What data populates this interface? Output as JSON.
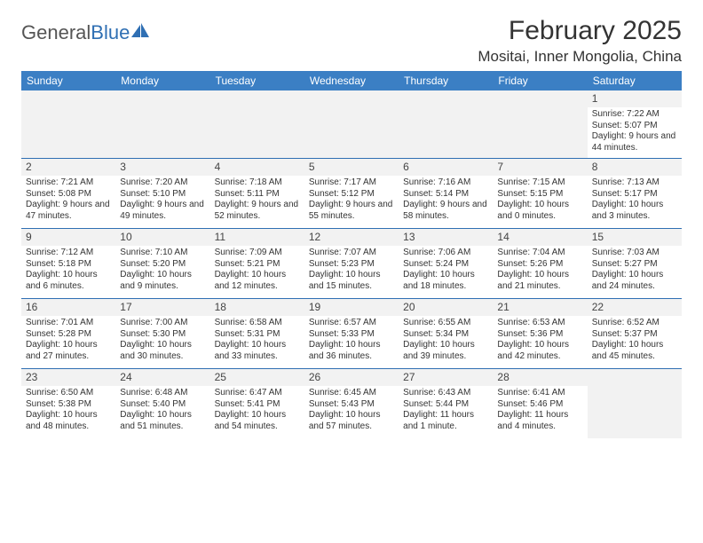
{
  "logo": {
    "text1": "General",
    "text2": "Blue"
  },
  "header": {
    "month_title": "February 2025",
    "location": "Mositai, Inner Mongolia, China"
  },
  "colors": {
    "header_bar": "#3b7fc4",
    "rule": "#2f6fb3",
    "shade": "#f2f2f2",
    "text": "#333333"
  },
  "day_names": [
    "Sunday",
    "Monday",
    "Tuesday",
    "Wednesday",
    "Thursday",
    "Friday",
    "Saturday"
  ],
  "weeks": [
    [
      null,
      null,
      null,
      null,
      null,
      null,
      {
        "n": "1",
        "sunrise": "Sunrise: 7:22 AM",
        "sunset": "Sunset: 5:07 PM",
        "day": "Daylight: 9 hours and 44 minutes."
      }
    ],
    [
      {
        "n": "2",
        "sunrise": "Sunrise: 7:21 AM",
        "sunset": "Sunset: 5:08 PM",
        "day": "Daylight: 9 hours and 47 minutes."
      },
      {
        "n": "3",
        "sunrise": "Sunrise: 7:20 AM",
        "sunset": "Sunset: 5:10 PM",
        "day": "Daylight: 9 hours and 49 minutes."
      },
      {
        "n": "4",
        "sunrise": "Sunrise: 7:18 AM",
        "sunset": "Sunset: 5:11 PM",
        "day": "Daylight: 9 hours and 52 minutes."
      },
      {
        "n": "5",
        "sunrise": "Sunrise: 7:17 AM",
        "sunset": "Sunset: 5:12 PM",
        "day": "Daylight: 9 hours and 55 minutes."
      },
      {
        "n": "6",
        "sunrise": "Sunrise: 7:16 AM",
        "sunset": "Sunset: 5:14 PM",
        "day": "Daylight: 9 hours and 58 minutes."
      },
      {
        "n": "7",
        "sunrise": "Sunrise: 7:15 AM",
        "sunset": "Sunset: 5:15 PM",
        "day": "Daylight: 10 hours and 0 minutes."
      },
      {
        "n": "8",
        "sunrise": "Sunrise: 7:13 AM",
        "sunset": "Sunset: 5:17 PM",
        "day": "Daylight: 10 hours and 3 minutes."
      }
    ],
    [
      {
        "n": "9",
        "sunrise": "Sunrise: 7:12 AM",
        "sunset": "Sunset: 5:18 PM",
        "day": "Daylight: 10 hours and 6 minutes."
      },
      {
        "n": "10",
        "sunrise": "Sunrise: 7:10 AM",
        "sunset": "Sunset: 5:20 PM",
        "day": "Daylight: 10 hours and 9 minutes."
      },
      {
        "n": "11",
        "sunrise": "Sunrise: 7:09 AM",
        "sunset": "Sunset: 5:21 PM",
        "day": "Daylight: 10 hours and 12 minutes."
      },
      {
        "n": "12",
        "sunrise": "Sunrise: 7:07 AM",
        "sunset": "Sunset: 5:23 PM",
        "day": "Daylight: 10 hours and 15 minutes."
      },
      {
        "n": "13",
        "sunrise": "Sunrise: 7:06 AM",
        "sunset": "Sunset: 5:24 PM",
        "day": "Daylight: 10 hours and 18 minutes."
      },
      {
        "n": "14",
        "sunrise": "Sunrise: 7:04 AM",
        "sunset": "Sunset: 5:26 PM",
        "day": "Daylight: 10 hours and 21 minutes."
      },
      {
        "n": "15",
        "sunrise": "Sunrise: 7:03 AM",
        "sunset": "Sunset: 5:27 PM",
        "day": "Daylight: 10 hours and 24 minutes."
      }
    ],
    [
      {
        "n": "16",
        "sunrise": "Sunrise: 7:01 AM",
        "sunset": "Sunset: 5:28 PM",
        "day": "Daylight: 10 hours and 27 minutes."
      },
      {
        "n": "17",
        "sunrise": "Sunrise: 7:00 AM",
        "sunset": "Sunset: 5:30 PM",
        "day": "Daylight: 10 hours and 30 minutes."
      },
      {
        "n": "18",
        "sunrise": "Sunrise: 6:58 AM",
        "sunset": "Sunset: 5:31 PM",
        "day": "Daylight: 10 hours and 33 minutes."
      },
      {
        "n": "19",
        "sunrise": "Sunrise: 6:57 AM",
        "sunset": "Sunset: 5:33 PM",
        "day": "Daylight: 10 hours and 36 minutes."
      },
      {
        "n": "20",
        "sunrise": "Sunrise: 6:55 AM",
        "sunset": "Sunset: 5:34 PM",
        "day": "Daylight: 10 hours and 39 minutes."
      },
      {
        "n": "21",
        "sunrise": "Sunrise: 6:53 AM",
        "sunset": "Sunset: 5:36 PM",
        "day": "Daylight: 10 hours and 42 minutes."
      },
      {
        "n": "22",
        "sunrise": "Sunrise: 6:52 AM",
        "sunset": "Sunset: 5:37 PM",
        "day": "Daylight: 10 hours and 45 minutes."
      }
    ],
    [
      {
        "n": "23",
        "sunrise": "Sunrise: 6:50 AM",
        "sunset": "Sunset: 5:38 PM",
        "day": "Daylight: 10 hours and 48 minutes."
      },
      {
        "n": "24",
        "sunrise": "Sunrise: 6:48 AM",
        "sunset": "Sunset: 5:40 PM",
        "day": "Daylight: 10 hours and 51 minutes."
      },
      {
        "n": "25",
        "sunrise": "Sunrise: 6:47 AM",
        "sunset": "Sunset: 5:41 PM",
        "day": "Daylight: 10 hours and 54 minutes."
      },
      {
        "n": "26",
        "sunrise": "Sunrise: 6:45 AM",
        "sunset": "Sunset: 5:43 PM",
        "day": "Daylight: 10 hours and 57 minutes."
      },
      {
        "n": "27",
        "sunrise": "Sunrise: 6:43 AM",
        "sunset": "Sunset: 5:44 PM",
        "day": "Daylight: 11 hours and 1 minute."
      },
      {
        "n": "28",
        "sunrise": "Sunrise: 6:41 AM",
        "sunset": "Sunset: 5:46 PM",
        "day": "Daylight: 11 hours and 4 minutes."
      },
      null
    ]
  ]
}
